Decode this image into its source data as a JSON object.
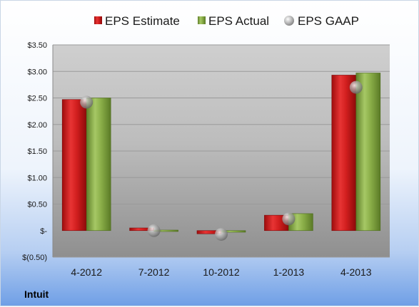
{
  "company": "Intuit",
  "legend": [
    {
      "label": "EPS Estimate",
      "color": "#d32020",
      "icon": "red-box-icon"
    },
    {
      "label": "EPS Actual",
      "color": "#8aae48",
      "icon": "green-box-icon"
    },
    {
      "label": "EPS GAAP",
      "color": "#a8a8a8",
      "icon": "gray-sphere-icon"
    }
  ],
  "chart_data": {
    "type": "bar",
    "categories": [
      "4-2012",
      "7-2012",
      "10-2012",
      "1-2013",
      "4-2013"
    ],
    "series": [
      {
        "name": "EPS Estimate",
        "type": "bar",
        "color": "#d32020",
        "values": [
          2.47,
          0.05,
          -0.06,
          0.29,
          2.93
        ]
      },
      {
        "name": "EPS Actual",
        "type": "bar",
        "color": "#8aae48",
        "values": [
          2.5,
          0.01,
          -0.03,
          0.32,
          2.97
        ]
      },
      {
        "name": "EPS GAAP",
        "type": "scatter",
        "color": "#a8a8a8",
        "values": [
          2.42,
          0.0,
          -0.07,
          0.22,
          2.7
        ]
      }
    ],
    "ylim": [
      -0.5,
      3.5
    ],
    "yticks": [
      {
        "value": 3.5,
        "label": "$3.50"
      },
      {
        "value": 3.0,
        "label": "$3.00"
      },
      {
        "value": 2.5,
        "label": "$2.50"
      },
      {
        "value": 2.0,
        "label": "$2.00"
      },
      {
        "value": 1.5,
        "label": "$1.50"
      },
      {
        "value": 1.0,
        "label": "$1.00"
      },
      {
        "value": 0.5,
        "label": "$0.50"
      },
      {
        "value": 0.0,
        "label": "$-"
      },
      {
        "value": -0.5,
        "label": "$(0.50)"
      }
    ],
    "grid": true,
    "legend_position": "top"
  }
}
